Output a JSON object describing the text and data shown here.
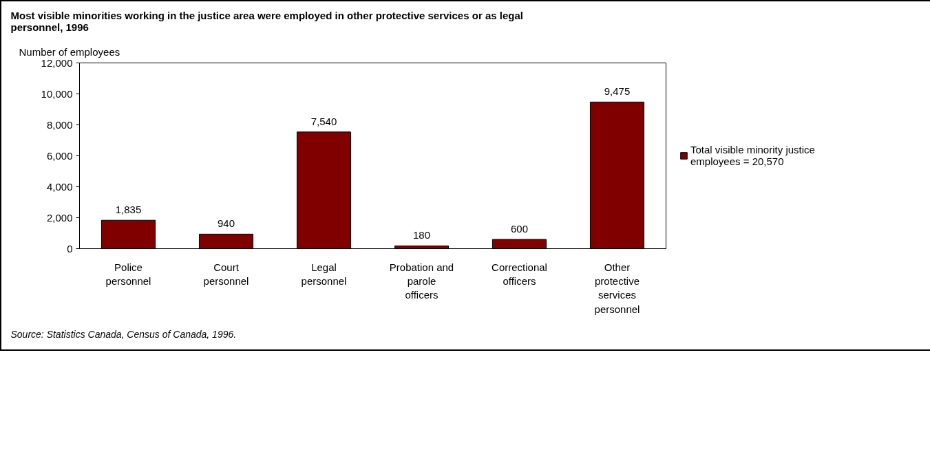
{
  "chart_data": {
    "type": "bar",
    "title": "Most visible minorities working in the justice area were employed in other protective services or as legal personnel, 1996",
    "ylabel": "Number of employees",
    "categories": [
      "Police personnel",
      "Court personnel",
      "Legal personnel",
      "Probation and parole officers",
      "Correctional officers",
      "Other protective services personnel"
    ],
    "series": [
      {
        "name": "Total visible minority justice employees = 20,570",
        "color": "#800000",
        "values": [
          1835,
          940,
          7540,
          180,
          600,
          9475
        ]
      }
    ],
    "ylim": [
      0,
      12000
    ],
    "yticks": [
      {
        "value": 0,
        "label": "0"
      },
      {
        "value": 2000,
        "label": "2,000"
      },
      {
        "value": 4000,
        "label": "4,000"
      },
      {
        "value": 6000,
        "label": "6,000"
      },
      {
        "value": 8000,
        "label": "8,000"
      },
      {
        "value": 10000,
        "label": "10,000"
      },
      {
        "value": 12000,
        "label": "12,000"
      }
    ],
    "value_labels": [
      "1,835",
      "940",
      "7,540",
      "180",
      "600",
      "9,475"
    ],
    "grid": false,
    "legend": "right",
    "annotations": [
      "Source: Statistics Canada, Census of Canada, 1996."
    ]
  }
}
